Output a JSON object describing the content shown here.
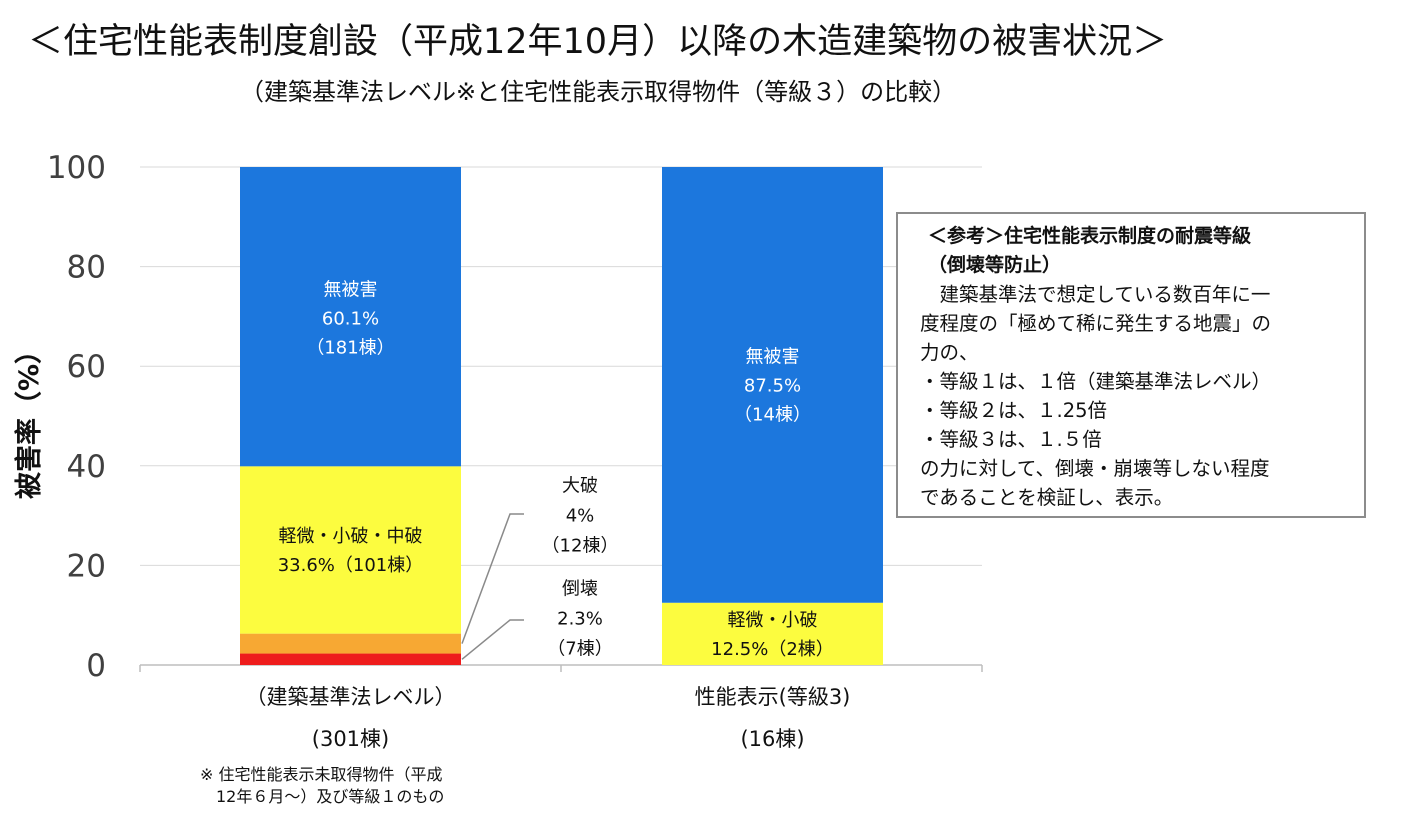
{
  "title": "＜住宅性能表制度創設（平成12年10月）以降の木造建築物の被害状況＞",
  "subtitle": "（建築基準法レベル※と住宅性能表示取得物件（等級３）の比較）",
  "chart_data": {
    "type": "bar",
    "stacked": true,
    "ylabel": "被害率（%）",
    "ylim": [
      0,
      100
    ],
    "yticks": [
      "0",
      "20",
      "40",
      "60",
      "80",
      "100"
    ],
    "grid": true,
    "categories": [
      {
        "label": "（建築基準法レベル）",
        "count": "(301棟)"
      },
      {
        "label": "性能表示(等級3)",
        "count": "(16棟)"
      }
    ],
    "series": [
      {
        "color": "#ee1c1c",
        "values": [
          2.3,
          0
        ]
      },
      {
        "color": "#f7a833",
        "values": [
          4.0,
          0
        ]
      },
      {
        "color": "#fcfc3f",
        "values": [
          33.6,
          12.5
        ]
      },
      {
        "color": "#1c77dd",
        "values": [
          60.1,
          87.5
        ]
      }
    ],
    "data_labels": [
      {
        "lines": [
          "無被害",
          "60.1%",
          "（181棟）"
        ],
        "color": "#ffffff"
      },
      {
        "lines": [
          "軽微・小破・中破",
          "33.6%（101棟）"
        ],
        "color": "#111111"
      },
      {
        "lines": [
          "無被害",
          "87.5%",
          "（14棟）"
        ],
        "color": "#ffffff"
      },
      {
        "lines": [
          "軽微・小破",
          "12.5%（2棟）"
        ],
        "color": "#111111"
      }
    ],
    "callouts": [
      {
        "lines": [
          "大破",
          "4%",
          "（12棟）"
        ]
      },
      {
        "lines": [
          "倒壊",
          "2.3%",
          "（7棟）"
        ]
      }
    ]
  },
  "note": {
    "title": "＜参考＞住宅性能表示制度の耐震等級\n（倒壊等防止）",
    "body": "　建築基準法で想定している数百年に一\n度程度の「極めて稀に発生する地震」の\n力の、\n・等級１は、１倍（建築基準法レベル）\n・等級２は、１.25倍\n・等級３は、１.５倍\nの力に対して、倒壊・崩壊等しない程度\nであることを検証し、表示。"
  },
  "footnote": "※ 住宅性能表示未取得物件（平成\n　12年６月～）及び等級１のもの"
}
